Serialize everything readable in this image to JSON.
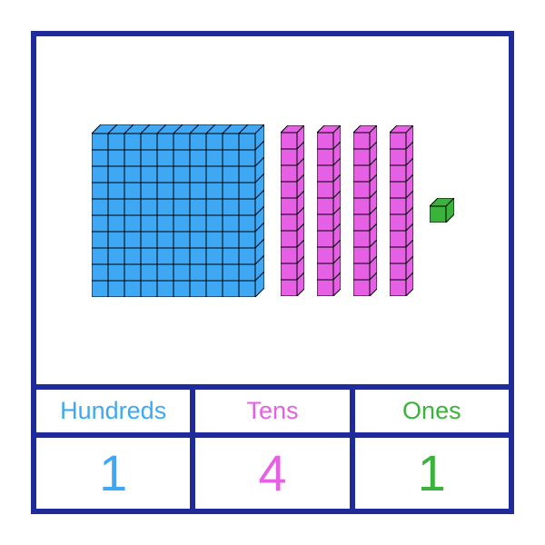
{
  "border_color": "#1f2a9b",
  "hundreds": {
    "label": "Hundreds",
    "value": "1",
    "color": "#3fa8f4",
    "stroke": "#000000",
    "grid_n": 10,
    "cell": 18,
    "depth": 10
  },
  "tens": {
    "label": "Tens",
    "value": "4",
    "count": 4,
    "color": "#e560e5",
    "stroke": "#000000",
    "cell": 18,
    "depth": 8,
    "stack": 10
  },
  "ones": {
    "label": "Ones",
    "value": "1",
    "count": 1,
    "color": "#3bb23b",
    "stroke": "#000000",
    "cell": 18,
    "depth": 9
  },
  "label_colors": {
    "hundreds": "#3fa8f4",
    "tens": "#e560e5",
    "ones": "#3bb23b"
  }
}
